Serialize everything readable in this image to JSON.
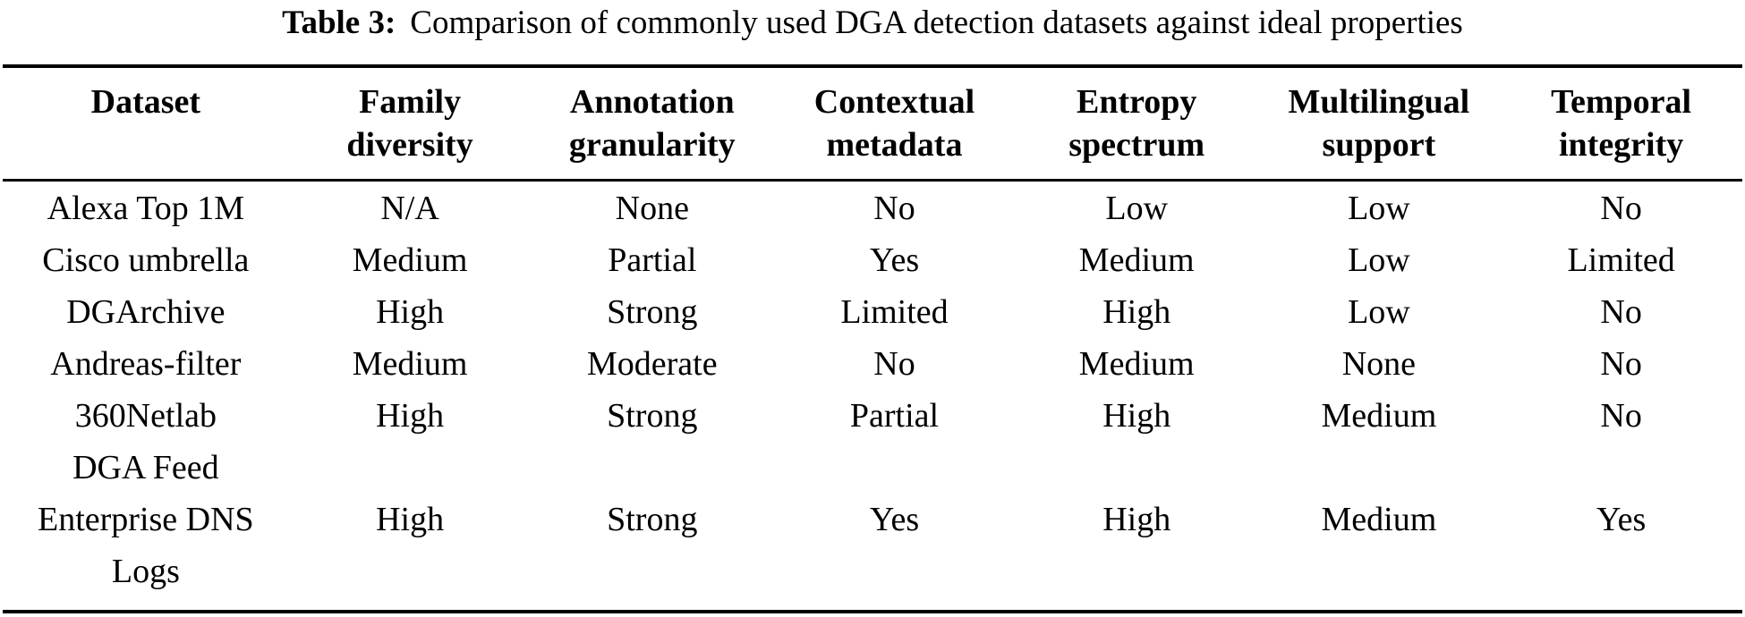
{
  "title": {
    "label": "Table 3:",
    "text": "Comparison of commonly used DGA detection datasets against ideal properties"
  },
  "table": {
    "columns": [
      {
        "lines": [
          "Dataset"
        ]
      },
      {
        "lines": [
          "Family",
          "diversity"
        ]
      },
      {
        "lines": [
          "Annotation",
          "granularity"
        ]
      },
      {
        "lines": [
          "Contextual",
          "metadata"
        ]
      },
      {
        "lines": [
          "Entropy",
          "spectrum"
        ]
      },
      {
        "lines": [
          "Multilingual",
          "support"
        ]
      },
      {
        "lines": [
          "Temporal",
          "integrity"
        ]
      }
    ],
    "rows": [
      {
        "dataset": [
          "Alexa Top 1M"
        ],
        "values": [
          "N/A",
          "None",
          "No",
          "Low",
          "Low",
          "No"
        ]
      },
      {
        "dataset": [
          "Cisco umbrella"
        ],
        "values": [
          "Medium",
          "Partial",
          "Yes",
          "Medium",
          "Low",
          "Limited"
        ]
      },
      {
        "dataset": [
          "DGArchive"
        ],
        "values": [
          "High",
          "Strong",
          "Limited",
          "High",
          "Low",
          "No"
        ]
      },
      {
        "dataset": [
          "Andreas-filter"
        ],
        "values": [
          "Medium",
          "Moderate",
          "No",
          "Medium",
          "None",
          "No"
        ]
      },
      {
        "dataset": [
          "360Netlab",
          "DGA Feed"
        ],
        "values": [
          "High",
          "Strong",
          "Partial",
          "High",
          "Medium",
          "No"
        ]
      },
      {
        "dataset": [
          "Enterprise DNS",
          "Logs"
        ],
        "values": [
          "High",
          "Strong",
          "Yes",
          "High",
          "Medium",
          "Yes"
        ]
      }
    ]
  },
  "colors": {
    "text": "#000000",
    "background": "#ffffff",
    "rule": "#000000"
  }
}
